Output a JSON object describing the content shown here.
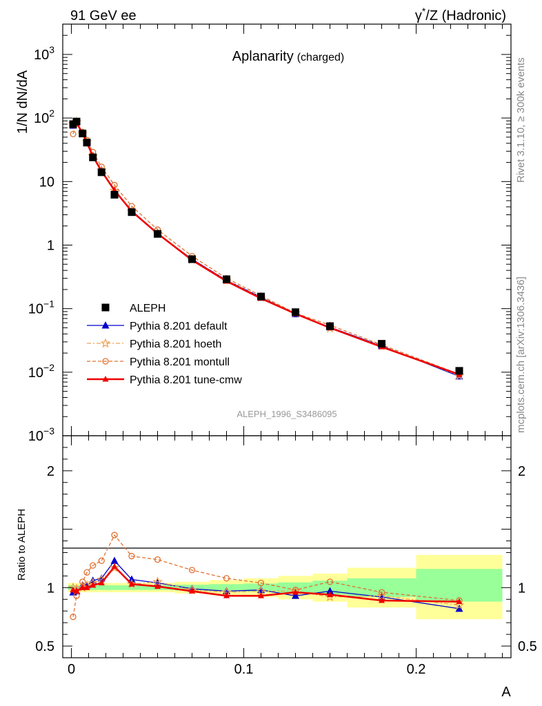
{
  "header": {
    "left": "91 GeV ee",
    "right_prefix": "γ",
    "right_sup": "*",
    "right_suffix": "/Z (Hadronic)"
  },
  "title": {
    "main": "Aplanarity",
    "sub": "(charged)"
  },
  "side": {
    "rivet": "Rivet 3.1.10, ≥ 300k events",
    "mcplots": "mcplots.cern.ch [arXiv:1306.3436]"
  },
  "analysis_id": "ALEPH_1996_S3486095",
  "colors": {
    "data": "#000000",
    "default": "#0000cc",
    "hoeth": "#f0a050",
    "montull": "#e07030",
    "cmw": "#ee0000",
    "band_inner": "#99ff99",
    "band_outer": "#ffff99"
  },
  "chart_data": [
    {
      "type": "line",
      "panel": "main",
      "ylabel": "1/N dN/dA",
      "yscale": "log",
      "ylim": [
        0.001,
        3000
      ],
      "xlim": [
        -0.005,
        0.255
      ],
      "y_tick_labels": [
        {
          "value": 1000,
          "base": "10",
          "exp": "3"
        },
        {
          "value": 100,
          "base": "10",
          "exp": "2"
        },
        {
          "value": 10,
          "base": "10",
          "exp": ""
        },
        {
          "value": 1,
          "base": "1",
          "exp": ""
        },
        {
          "value": 0.1,
          "base": "10",
          "exp": "−1"
        },
        {
          "value": 0.01,
          "base": "10",
          "exp": "−2"
        },
        {
          "value": 0.001,
          "base": "10",
          "exp": "−3"
        }
      ],
      "x": [
        0.001,
        0.003,
        0.0065,
        0.009,
        0.0125,
        0.0175,
        0.025,
        0.035,
        0.05,
        0.07,
        0.09,
        0.11,
        0.13,
        0.15,
        0.18,
        0.225
      ],
      "data": {
        "name": "ALEPH",
        "values": [
          80,
          88,
          57,
          41,
          24,
          14,
          6.2,
          3.3,
          1.5,
          0.6,
          0.29,
          0.155,
          0.088,
          0.053,
          0.028,
          0.0105
        ]
      },
      "series": [
        {
          "name": "Pythia 8.201 default",
          "values": [
            76,
            86,
            58,
            42,
            25,
            15,
            7.0,
            3.5,
            1.52,
            0.6,
            0.28,
            0.152,
            0.082,
            0.051,
            0.026,
            0.0086
          ]
        },
        {
          "name": "Pythia 8.201 hoeth",
          "values": [
            80,
            87,
            57,
            42,
            25,
            15,
            7.2,
            3.4,
            1.55,
            0.59,
            0.28,
            0.15,
            0.085,
            0.049,
            0.026,
            0.0088
          ]
        },
        {
          "name": "Pythia 8.201 montull",
          "values": [
            56,
            82,
            60,
            45,
            29,
            17,
            8.8,
            4.1,
            1.75,
            0.67,
            0.3,
            0.16,
            0.085,
            0.055,
            0.027,
            0.0093
          ]
        },
        {
          "name": "Pythia 8.201 tune-cmw",
          "values": [
            78,
            85,
            57,
            41,
            25,
            14.5,
            7.3,
            3.4,
            1.52,
            0.58,
            0.27,
            0.145,
            0.083,
            0.05,
            0.025,
            0.0092
          ]
        }
      ]
    },
    {
      "type": "line",
      "panel": "ratio",
      "ylabel": "Ratio to ALEPH",
      "ylim": [
        0.4,
        2.3
      ],
      "y_tick_labels": [
        {
          "value": 2,
          "label": "2"
        },
        {
          "value": 1,
          "label": "1"
        },
        {
          "value": 0.5,
          "label": "0.5"
        }
      ],
      "xlabel": "A",
      "x_tick_labels": [
        {
          "value": 0,
          "label": "0"
        },
        {
          "value": 0.1,
          "label": "0.1"
        },
        {
          "value": 0.2,
          "label": "0.2"
        }
      ],
      "x": [
        0.001,
        0.003,
        0.0065,
        0.009,
        0.0125,
        0.0175,
        0.025,
        0.035,
        0.05,
        0.07,
        0.09,
        0.11,
        0.13,
        0.15,
        0.18,
        0.225
      ],
      "series": [
        {
          "name": "Pythia 8.201 default",
          "values": [
            0.96,
            0.97,
            1.02,
            1.02,
            1.06,
            1.08,
            1.23,
            1.07,
            1.04,
            0.99,
            0.97,
            0.98,
            0.93,
            0.97,
            0.92,
            0.82
          ]
        },
        {
          "name": "Pythia 8.201 hoeth",
          "values": [
            1.0,
            0.99,
            1.0,
            1.02,
            1.04,
            1.07,
            1.17,
            1.03,
            1.05,
            0.98,
            0.96,
            0.97,
            0.97,
            0.92,
            0.93,
            0.85
          ]
        },
        {
          "name": "Pythia 8.201 montull",
          "values": [
            0.75,
            0.93,
            1.05,
            1.13,
            1.19,
            1.23,
            1.45,
            1.27,
            1.24,
            1.15,
            1.08,
            1.04,
            0.98,
            1.05,
            0.96,
            0.89
          ]
        },
        {
          "name": "Pythia 8.201 tune-cmw",
          "values": [
            0.98,
            0.97,
            1.0,
            1.0,
            1.02,
            1.04,
            1.18,
            1.03,
            1.01,
            0.97,
            0.93,
            0.93,
            0.96,
            0.94,
            0.89,
            0.88
          ]
        }
      ],
      "bands": [
        {
          "x0": -0.002,
          "x1": 0.04,
          "inner": [
            0.98,
            1.02
          ],
          "outer": [
            0.96,
            1.04
          ]
        },
        {
          "x0": 0.04,
          "x1": 0.06,
          "inner": [
            0.98,
            1.02
          ],
          "outer": [
            0.96,
            1.04
          ]
        },
        {
          "x0": 0.06,
          "x1": 0.08,
          "inner": [
            0.975,
            1.025
          ],
          "outer": [
            0.95,
            1.05
          ]
        },
        {
          "x0": 0.08,
          "x1": 0.1,
          "inner": [
            0.97,
            1.03
          ],
          "outer": [
            0.935,
            1.065
          ]
        },
        {
          "x0": 0.1,
          "x1": 0.12,
          "inner": [
            0.965,
            1.035
          ],
          "outer": [
            0.92,
            1.08
          ]
        },
        {
          "x0": 0.12,
          "x1": 0.14,
          "inner": [
            0.955,
            1.045
          ],
          "outer": [
            0.9,
            1.1
          ]
        },
        {
          "x0": 0.14,
          "x1": 0.16,
          "inner": [
            0.94,
            1.06
          ],
          "outer": [
            0.88,
            1.12
          ]
        },
        {
          "x0": 0.16,
          "x1": 0.2,
          "inner": [
            0.92,
            1.08
          ],
          "outer": [
            0.83,
            1.17
          ]
        },
        {
          "x0": 0.2,
          "x1": 0.25,
          "inner": [
            0.88,
            1.16
          ],
          "outer": [
            0.73,
            1.28
          ]
        }
      ]
    }
  ]
}
